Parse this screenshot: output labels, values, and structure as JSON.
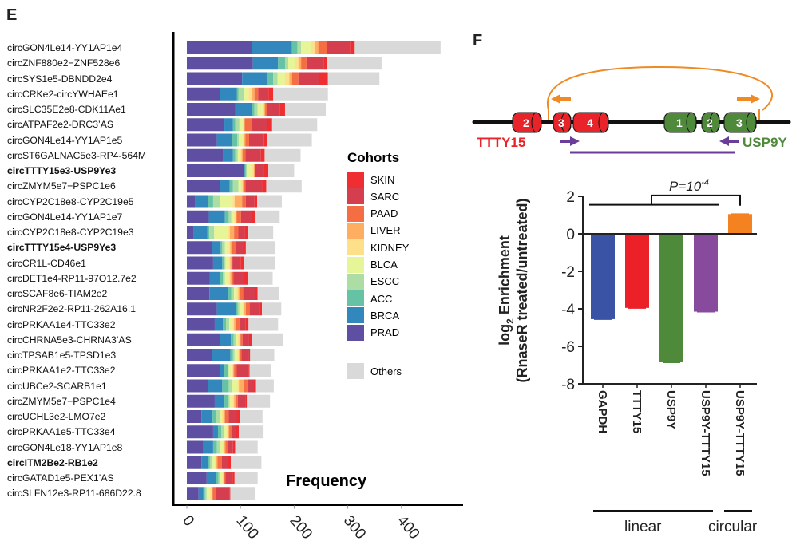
{
  "panel_e": {
    "letter": "E",
    "xlabel": "Frequency",
    "legend_title": "Cohorts"
  },
  "panel_f": {
    "letter": "F",
    "diagram": {
      "gene_left": "TTTY15",
      "gene_right": "USP9Y",
      "left_exons": [
        "2",
        "3",
        "4"
      ],
      "right_exons": [
        "1",
        "2",
        "3"
      ],
      "colors": {
        "left": "#e8242a",
        "right": "#4f8a3b",
        "circ_primer": "#f08a24",
        "lin_primer": "#6a3d9a"
      }
    },
    "pvalue_label": "P=10",
    "pvalue_exp": "-4",
    "group_labels": {
      "linear": "linear",
      "circular": "circular"
    },
    "ylabel_line1": "log",
    "ylabel_sub": "2",
    "ylabel_line1_rest": " Enrichment",
    "ylabel_line2": "(RnaseR treated/untreated)"
  },
  "chart_data": [
    {
      "type": "bar",
      "orientation": "horizontal-stacked",
      "title": "",
      "xlabel": "Frequency",
      "ylabel": "",
      "xlim": [
        0,
        480
      ],
      "xticks": [
        0,
        100,
        200,
        300,
        400
      ],
      "legend_title": "Cohorts",
      "legend_position": "right",
      "series_order": [
        "PRAD",
        "BRCA",
        "ACC",
        "ESCC",
        "BLCA",
        "KIDNEY",
        "LIVER",
        "PAAD",
        "SARC",
        "SKIN",
        "Others"
      ],
      "colors": {
        "SKIN": "#ee2e31",
        "SARC": "#d53e4f",
        "PAAD": "#f46d43",
        "LIVER": "#fdae61",
        "KIDNEY": "#fee08b",
        "BLCA": "#e6f598",
        "ESCC": "#abdda4",
        "ACC": "#66c2a5",
        "BRCA": "#3288bd",
        "PRAD": "#5e4fa2",
        "Others": "#d9d9d9"
      },
      "legend": [
        "SKIN",
        "SARC",
        "PAAD",
        "LIVER",
        "KIDNEY",
        "BLCA",
        "ESCC",
        "ACC",
        "BRCA",
        "PRAD",
        "Others"
      ],
      "rows": [
        {
          "label": "circGON4Le14-YY1AP1e4",
          "bold": false,
          "values": [
            122,
            74,
            10,
            7,
            18,
            7,
            7,
            16,
            43,
            9,
            160
          ]
        },
        {
          "label": "circZNF880e2−ZNF528e6",
          "bold": false,
          "values": [
            123,
            47,
            13,
            6,
            13,
            6,
            5,
            10,
            32,
            7,
            101
          ]
        },
        {
          "label": "circSYS1e5-DBNDD2e4",
          "bold": false,
          "values": [
            103,
            46,
            12,
            8,
            14,
            8,
            5,
            12,
            38,
            17,
            96
          ]
        },
        {
          "label": "circCRKe2-circYWHAEe1",
          "bold": false,
          "values": [
            62,
            31,
            3,
            11,
            8,
            6,
            5,
            7,
            19,
            9,
            102
          ]
        },
        {
          "label": "circSLC35E2e8-CDK11Ae1",
          "bold": false,
          "values": [
            90,
            32,
            4,
            6,
            9,
            3,
            2,
            3,
            24,
            10,
            76
          ]
        },
        {
          "label": "circATPAF2e2-DRC3’AS",
          "bold": false,
          "values": [
            70,
            16,
            4,
            8,
            6,
            2,
            2,
            13,
            28,
            10,
            84
          ]
        },
        {
          "label": "circGON4Le14-YY1AP1e5",
          "bold": false,
          "values": [
            56,
            28,
            10,
            3,
            7,
            3,
            2,
            7,
            28,
            5,
            84
          ]
        },
        {
          "label": "circST6GALNAC5e3-RP4-564M",
          "bold": false,
          "values": [
            67,
            19,
            4,
            5,
            4,
            3,
            2,
            5,
            29,
            7,
            67
          ]
        },
        {
          "label": "circTTTY15e3-USP9Ye3",
          "bold": true,
          "values": [
            106,
            2,
            2,
            2,
            10,
            3,
            1,
            1,
            16,
            9,
            48
          ]
        },
        {
          "label": "circZMYM5e7−PSPC1e6",
          "bold": false,
          "values": [
            62,
            18,
            6,
            10,
            5,
            3,
            3,
            2,
            31,
            8,
            66
          ]
        },
        {
          "label": "circCYP2C18e8-CYP2C19e5",
          "bold": false,
          "values": [
            16,
            23,
            10,
            12,
            24,
            4,
            14,
            7,
            16,
            5,
            46
          ]
        },
        {
          "label": "circGON4Le14-YY1AP1e7",
          "bold": false,
          "values": [
            41,
            30,
            7,
            5,
            5,
            3,
            2,
            8,
            20,
            6,
            46
          ]
        },
        {
          "label": "circCYP2C18e8-CYP2C19e3",
          "bold": false,
          "values": [
            13,
            25,
            4,
            9,
            26,
            3,
            8,
            8,
            12,
            6,
            47
          ]
        },
        {
          "label": "circTTTY15e4-USP9Ye3",
          "bold": true,
          "values": [
            47,
            16,
            3,
            5,
            7,
            3,
            2,
            8,
            16,
            3,
            55
          ]
        },
        {
          "label": "circCR1L-CD46e1",
          "bold": false,
          "values": [
            49,
            17,
            4,
            2,
            6,
            3,
            2,
            2,
            15,
            7,
            58
          ]
        },
        {
          "label": "circDET1e4-RP11-97O12.7e2",
          "bold": false,
          "values": [
            43,
            18,
            6,
            4,
            7,
            3,
            2,
            4,
            20,
            7,
            46
          ]
        },
        {
          "label": "circSCAF8e6-TIAM2e2",
          "bold": false,
          "values": [
            42,
            34,
            7,
            5,
            5,
            3,
            3,
            6,
            23,
            4,
            40
          ]
        },
        {
          "label": "circNR2F2e2-RP11-262A16.1",
          "bold": false,
          "values": [
            56,
            36,
            3,
            3,
            6,
            3,
            3,
            7,
            19,
            4,
            36
          ]
        },
        {
          "label": "circPRKAA1e4-TTC33e2",
          "bold": false,
          "values": [
            52,
            15,
            6,
            6,
            6,
            3,
            3,
            7,
            11,
            6,
            55
          ]
        },
        {
          "label": "circCHRNA5e3-CHRNA3’AS",
          "bold": false,
          "values": [
            62,
            20,
            5,
            4,
            4,
            3,
            2,
            4,
            12,
            6,
            57
          ]
        },
        {
          "label": "circTPSAB1e5-TPSD1e3",
          "bold": false,
          "values": [
            47,
            34,
            5,
            3,
            5,
            3,
            2,
            3,
            14,
            2,
            45
          ]
        },
        {
          "label": "circPRKAA1e2-TTC33e2",
          "bold": false,
          "values": [
            61,
            9,
            6,
            2,
            5,
            3,
            2,
            5,
            22,
            2,
            40
          ]
        },
        {
          "label": "circUBCe2-SCARB1e1",
          "bold": false,
          "values": [
            39,
            27,
            12,
            6,
            10,
            3,
            10,
            6,
            12,
            4,
            33
          ]
        },
        {
          "label": "circZMYM5e7−PSPC1e4",
          "bold": false,
          "values": [
            52,
            18,
            6,
            4,
            5,
            3,
            3,
            4,
            15,
            2,
            43
          ]
        },
        {
          "label": "circUCHL3e2-LMO7e2",
          "bold": false,
          "values": [
            27,
            21,
            7,
            6,
            4,
            3,
            3,
            7,
            15,
            6,
            42
          ]
        },
        {
          "label": "circPRKAA1e5-TTC33e4",
          "bold": false,
          "values": [
            49,
            9,
            6,
            5,
            5,
            3,
            2,
            5,
            7,
            6,
            46
          ]
        },
        {
          "label": "circGON4Le18-YY1AP1e8",
          "bold": false,
          "values": [
            31,
            18,
            7,
            5,
            6,
            3,
            2,
            4,
            10,
            4,
            42
          ]
        },
        {
          "label": "circITM2Be2-RB1e2",
          "bold": true,
          "values": [
            27,
            13,
            3,
            5,
            4,
            2,
            3,
            8,
            11,
            6,
            57
          ]
        },
        {
          "label": "circGATAD1e5-PEX1’AS",
          "bold": false,
          "values": [
            37,
            18,
            4,
            2,
            5,
            2,
            2,
            2,
            13,
            4,
            43
          ]
        },
        {
          "label": "circSLFN12e3-RP11-686D22.8",
          "bold": false,
          "values": [
            22,
            9,
            3,
            3,
            6,
            3,
            2,
            6,
            26,
            1,
            47
          ]
        }
      ]
    },
    {
      "type": "bar",
      "title": "",
      "xlabel": "",
      "ylabel": "log2 Enrichment (RnaseR treated/untreated)",
      "ylim": [
        -8,
        2
      ],
      "yticks": [
        2,
        0,
        -2,
        -4,
        -6,
        -8
      ],
      "categories": [
        "GAPDH",
        "TTTY15",
        "USP9Y",
        "USP9Y-TTTY15",
        "USP9Y-TTTY15"
      ],
      "groups": [
        {
          "name": "linear",
          "members": [
            0,
            1,
            2,
            3
          ]
        },
        {
          "name": "circular",
          "members": [
            4
          ]
        }
      ],
      "values": [
        -4.55,
        -3.95,
        -6.85,
        -4.15,
        1.05
      ],
      "colors": [
        "#3a53a4",
        "#ec2128",
        "#4f8a3b",
        "#874a9c",
        "#f48220"
      ],
      "annotation": "P=10^-4"
    }
  ]
}
